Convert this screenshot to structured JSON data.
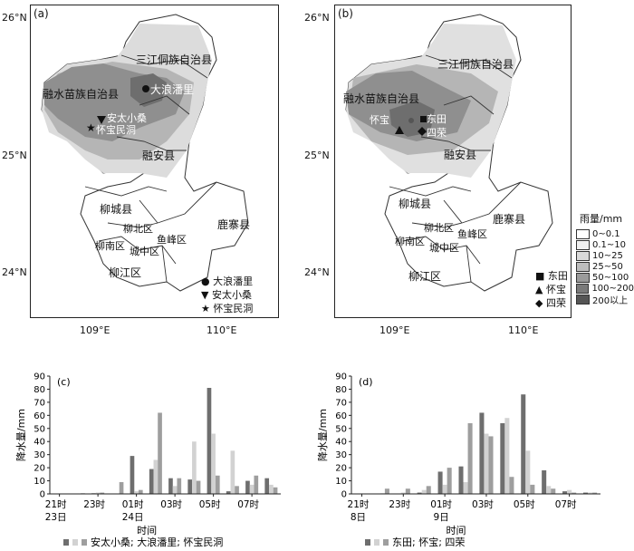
{
  "panels": {
    "a": {
      "label": "(a)"
    },
    "b": {
      "label": "(b)"
    },
    "c": {
      "label": "(c)"
    },
    "d": {
      "label": "(d)"
    }
  },
  "map": {
    "lat_ticks": [
      "26°N",
      "25°N",
      "24°N"
    ],
    "lon_ticks": [
      "109°E",
      "110°E"
    ],
    "counties": {
      "sanjiang": "三江侗族自治县",
      "rongshui": "融水苗族自治县",
      "rongan": "融安县",
      "liucheng": "柳城县",
      "luzhai": "鹿寨县",
      "liubei": "柳北区",
      "yufeng": "鱼峰区",
      "liunan": "柳南区",
      "chengzhong": "城中区",
      "liujiang": "柳江区"
    },
    "a_labels": {
      "dalang": "大浪潘里",
      "antai": "安太小桑",
      "huaibao": "怀宝民洞"
    },
    "b_labels": {
      "dongtian": "东田",
      "huaibao": "怀宝",
      "sirong": "四荣"
    },
    "a_legend": [
      {
        "symbol": "●",
        "label": "大浪潘里"
      },
      {
        "symbol": "▼",
        "label": "安太小桑"
      },
      {
        "symbol": "★",
        "label": "怀宝民洞"
      }
    ],
    "b_legend": [
      {
        "symbol": "■",
        "label": "东田"
      },
      {
        "symbol": "▲",
        "label": "怀宝"
      },
      {
        "symbol": "◆",
        "label": "四荣"
      }
    ],
    "rain_legend": {
      "title": "雨量/mm",
      "items": [
        {
          "label": "0~0.1",
          "color": "#ffffff"
        },
        {
          "label": "0.1~10",
          "color": "#f0f0f0"
        },
        {
          "label": "10~25",
          "color": "#d9d9d9"
        },
        {
          "label": "25~50",
          "color": "#bdbdbd"
        },
        {
          "label": "50~100",
          "color": "#9a9a9a"
        },
        {
          "label": "100~200",
          "color": "#7a7a7a"
        },
        {
          "label": "200以上",
          "color": "#555555"
        }
      ]
    }
  },
  "chart_data": [
    {
      "type": "bar",
      "panel": "(c)",
      "ylabel": "降水量/mm",
      "xlabel": "时间",
      "ylim": [
        0,
        90
      ],
      "yticks": [
        0,
        10,
        20,
        30,
        40,
        50,
        60,
        70,
        80,
        90
      ],
      "x": [
        "21时",
        "22时",
        "23时",
        "00时",
        "01时",
        "02时",
        "03时",
        "04时",
        "05时",
        "06时",
        "07时",
        "08时"
      ],
      "xticks": [
        {
          "index": 0,
          "line1": "21时",
          "line2": "23日"
        },
        {
          "index": 2,
          "line1": "23时",
          "line2": ""
        },
        {
          "index": 4,
          "line1": "01时",
          "line2": "24日"
        },
        {
          "index": 6,
          "line1": "03时",
          "line2": ""
        },
        {
          "index": 8,
          "line1": "05时",
          "line2": ""
        },
        {
          "index": 10,
          "line1": "07时",
          "line2": ""
        }
      ],
      "legend_text": "安太小桑; 大浪潘里; 怀宝民洞",
      "series": [
        {
          "name": "安太小桑",
          "color": "#6e6e6e",
          "values": [
            0,
            0.3,
            0.5,
            0,
            29,
            19,
            12,
            11,
            81,
            2,
            10,
            12
          ]
        },
        {
          "name": "大浪潘里",
          "color": "#d2d2d2",
          "values": [
            0,
            0.3,
            1,
            0,
            2,
            26,
            6,
            40,
            46,
            33,
            7,
            7
          ]
        },
        {
          "name": "怀宝民洞",
          "color": "#9e9e9e",
          "values": [
            0.3,
            0.5,
            1,
            9,
            3,
            62,
            12,
            10,
            14,
            6,
            14,
            5
          ]
        }
      ]
    },
    {
      "type": "bar",
      "panel": "(d)",
      "ylabel": "降水量/mm",
      "xlabel": "时间",
      "ylim": [
        0,
        90
      ],
      "yticks": [
        0,
        10,
        20,
        30,
        40,
        50,
        60,
        70,
        80,
        90
      ],
      "x": [
        "21时",
        "22时",
        "23时",
        "00时",
        "01时",
        "02时",
        "03时",
        "04时",
        "05时",
        "06时",
        "07时",
        "08时"
      ],
      "xticks": [
        {
          "index": 0,
          "line1": "21时",
          "line2": "8日"
        },
        {
          "index": 2,
          "line1": "23时",
          "line2": ""
        },
        {
          "index": 4,
          "line1": "01时",
          "line2": "9日"
        },
        {
          "index": 6,
          "line1": "03时",
          "line2": ""
        },
        {
          "index": 8,
          "line1": "05时",
          "line2": ""
        },
        {
          "index": 10,
          "line1": "07时",
          "line2": ""
        }
      ],
      "legend_text": "东田; 怀宝; 四荣",
      "series": [
        {
          "name": "东田",
          "color": "#6e6e6e",
          "values": [
            0,
            0,
            0,
            1,
            17,
            21,
            62,
            54,
            76,
            18,
            2,
            1
          ]
        },
        {
          "name": "怀宝",
          "color": "#d2d2d2",
          "values": [
            0,
            0.5,
            1,
            3,
            7,
            9,
            46,
            58,
            33,
            6,
            3,
            1
          ]
        },
        {
          "name": "四荣",
          "color": "#9e9e9e",
          "values": [
            0,
            4,
            4,
            6,
            20,
            54,
            44,
            13,
            7,
            4,
            1,
            1
          ]
        }
      ]
    }
  ]
}
